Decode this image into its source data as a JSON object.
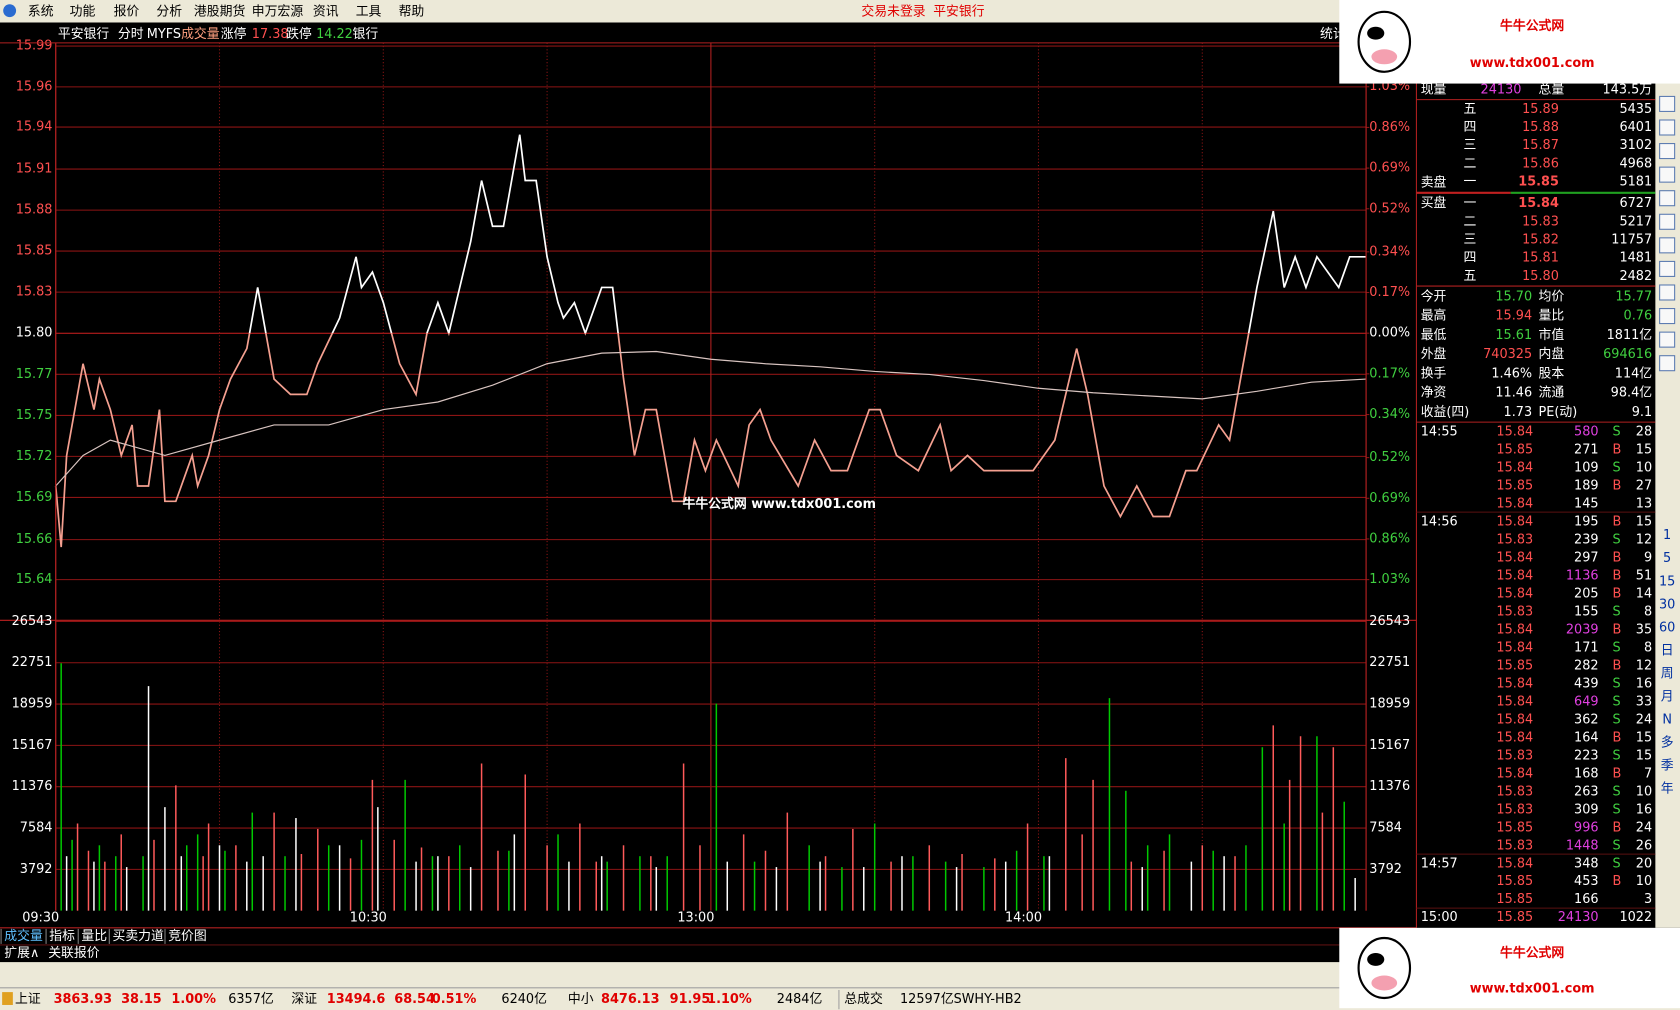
{
  "menu": {
    "items": [
      "系统",
      "功能",
      "报价",
      "分析",
      "港股期货",
      "申万宏源",
      "资讯",
      "工具",
      "帮助"
    ],
    "status": [
      "交易未登录",
      "平安银行"
    ]
  },
  "header": {
    "items": [
      "平安银行",
      "分时",
      "MYFS",
      "成交量",
      "涨停",
      "17.38",
      "跌停",
      "14.22",
      "银行"
    ],
    "right": "统计"
  },
  "logo": {
    "title": "牛牛公式网",
    "url": "www.tdx001.com"
  },
  "watermark": "牛牛公式网 www.tdx001.com",
  "chart_data": [
    {
      "type": "line",
      "xlim": [
        0,
        240
      ],
      "xticks": [
        {
          "value": 0,
          "label": "09:30"
        },
        {
          "value": 30,
          "label": null
        },
        {
          "value": 60,
          "label": "10:30"
        },
        {
          "value": 90,
          "label": null
        },
        {
          "value": 120,
          "label": "13:00"
        },
        {
          "value": 150,
          "label": null
        },
        {
          "value": 180,
          "label": "14:00"
        },
        {
          "value": 210,
          "label": null
        },
        {
          "value": 240,
          "label": null
        }
      ],
      "ylim": [
        15.6387,
        15.988
      ],
      "yticks": [
        {
          "value": 15.988,
          "label": "15.99"
        },
        {
          "value": 15.9613,
          "label": "15.96"
        },
        {
          "value": 15.935,
          "label": "15.94"
        },
        {
          "value": 15.9075,
          "label": "15.91"
        },
        {
          "value": 15.8806,
          "label": "15.88"
        },
        {
          "value": 15.8538,
          "label": "15.85"
        },
        {
          "value": 15.8269,
          "label": "15.83"
        },
        {
          "value": 15.8,
          "label": "15.80"
        },
        {
          "value": 15.7731,
          "label": "15.77"
        },
        {
          "value": 15.7462,
          "label": "15.75"
        },
        {
          "value": 15.7194,
          "label": "15.72"
        },
        {
          "value": 15.6925,
          "label": "15.69"
        },
        {
          "value": 15.6649,
          "label": "15.66"
        },
        {
          "value": 15.6387,
          "label": "15.64"
        }
      ],
      "y2lim": [
        -1.03,
        1.2
      ],
      "y2ticks": [
        {
          "value": 1.03,
          "label": "1.03%"
        },
        {
          "value": 0.86,
          "label": "0.86%"
        },
        {
          "value": 0.69,
          "label": "0.69%"
        },
        {
          "value": 0.52,
          "label": "0.52%"
        },
        {
          "value": 0.34,
          "label": "0.34%"
        },
        {
          "value": 0.17,
          "label": "0.17%"
        },
        {
          "value": 0,
          "label": "0.00%"
        },
        {
          "value": -0.17,
          "label": "0.17%"
        },
        {
          "value": -0.34,
          "label": "0.34%"
        },
        {
          "value": -0.52,
          "label": "0.52%"
        },
        {
          "value": -0.69,
          "label": "0.69%"
        },
        {
          "value": -0.86,
          "label": "0.86%"
        },
        {
          "value": -1.03,
          "label": "1.03%"
        }
      ],
      "grid": true,
      "series": [
        {
          "color_above": "#ffffff",
          "color_below": "#f4a090",
          "x": [
            0,
            1,
            2,
            5,
            7,
            8,
            10,
            12,
            14,
            15,
            17,
            19,
            20,
            22,
            24,
            25,
            26,
            28,
            30,
            32,
            35,
            37,
            40,
            43,
            46,
            48,
            52,
            55,
            56,
            58,
            60,
            63,
            66,
            68,
            70,
            72,
            74,
            76,
            78,
            80,
            82,
            83,
            85,
            86,
            88,
            90,
            92,
            93,
            95,
            97,
            100,
            102,
            104,
            106,
            108,
            110,
            113,
            115,
            117,
            119,
            121,
            125,
            127,
            129,
            131,
            136,
            139,
            142,
            145,
            149,
            151,
            154,
            158,
            162,
            164,
            167,
            170,
            175,
            179,
            183,
            187,
            189,
            192,
            195,
            198,
            201,
            204,
            207,
            209,
            213,
            215,
            217,
            220,
            223,
            225,
            227,
            229,
            231,
            233,
            235,
            237,
            238,
            240
          ],
          "values": [
            15.7,
            15.66,
            15.72,
            15.78,
            15.75,
            15.77,
            15.75,
            15.72,
            15.74,
            15.7,
            15.7,
            15.75,
            15.69,
            15.69,
            15.71,
            15.72,
            15.7,
            15.72,
            15.75,
            15.77,
            15.79,
            15.83,
            15.77,
            15.76,
            15.76,
            15.78,
            15.81,
            15.85,
            15.83,
            15.84,
            15.82,
            15.78,
            15.76,
            15.8,
            15.82,
            15.8,
            15.83,
            15.86,
            15.9,
            15.87,
            15.87,
            15.89,
            15.93,
            15.9,
            15.9,
            15.85,
            15.82,
            15.81,
            15.82,
            15.8,
            15.83,
            15.83,
            15.77,
            15.72,
            15.75,
            15.75,
            15.69,
            15.69,
            15.73,
            15.71,
            15.73,
            15.7,
            15.74,
            15.75,
            15.73,
            15.7,
            15.73,
            15.71,
            15.71,
            15.75,
            15.75,
            15.72,
            15.71,
            15.74,
            15.71,
            15.72,
            15.71,
            15.71,
            15.71,
            15.73,
            15.79,
            15.76,
            15.7,
            15.68,
            15.7,
            15.68,
            15.68,
            15.71,
            15.71,
            15.74,
            15.73,
            15.77,
            15.83,
            15.88,
            15.83,
            15.85,
            15.83,
            15.85,
            15.84,
            15.83,
            15.85,
            15.85,
            15.85
          ]
        },
        {
          "color": "#d8c4c0",
          "x": [
            0,
            5,
            10,
            20,
            30,
            40,
            50,
            60,
            70,
            80,
            90,
            100,
            110,
            120,
            130,
            140,
            150,
            160,
            170,
            180,
            190,
            200,
            210,
            220,
            230,
            240
          ],
          "values": [
            15.7,
            15.72,
            15.73,
            15.72,
            15.73,
            15.74,
            15.74,
            15.75,
            15.755,
            15.766,
            15.78,
            15.787,
            15.788,
            15.783,
            15.78,
            15.778,
            15.775,
            15.773,
            15.769,
            15.764,
            15.761,
            15.759,
            15.757,
            15.762,
            15.768,
            15.77
          ]
        }
      ]
    },
    {
      "type": "bar",
      "xlim": [
        0,
        240
      ],
      "ylim": [
        0,
        26543
      ],
      "yticks": [
        3792,
        7584,
        11376,
        15167,
        18959,
        22751,
        26543
      ],
      "grid": true,
      "series": [
        {
          "color": "#ff5a5a",
          "x": [
            4,
            6,
            9,
            12,
            18,
            22,
            27,
            28,
            33,
            40,
            45,
            48,
            54,
            58,
            62,
            67,
            72,
            78,
            81,
            86,
            90,
            96,
            99,
            104,
            109,
            115,
            118,
            126,
            130,
            134,
            141,
            146,
            153,
            160,
            166,
            172,
            178,
            185,
            188,
            190,
            197,
            203,
            210,
            216,
            223,
            226,
            228,
            232,
            234
          ],
          "values": [
            8000,
            5500,
            4500,
            7000,
            6500,
            11500,
            5000,
            8000,
            6000,
            9000,
            5200,
            7500,
            4800,
            12000,
            6500,
            5800,
            5000,
            13500,
            5500,
            12500,
            6000,
            8000,
            4500,
            6000,
            5000,
            13500,
            6000,
            7000,
            5500,
            9000,
            5000,
            7500,
            4500,
            6000,
            5200,
            4800,
            8000,
            14000,
            7000,
            12000,
            4500,
            5500,
            6000,
            5000,
            17000,
            12000,
            16000,
            9000,
            15000
          ]
        },
        {
          "color": "#00c800",
          "x": [
            1,
            3,
            8,
            11,
            16,
            24,
            26,
            31,
            36,
            42,
            50,
            56,
            64,
            69,
            74,
            83,
            92,
            101,
            107,
            112,
            121,
            128,
            138,
            144,
            150,
            157,
            163,
            170,
            176,
            181,
            193,
            196,
            200,
            204,
            212,
            218,
            221,
            225,
            231,
            236
          ],
          "values": [
            22700,
            6500,
            6000,
            5000,
            5000,
            6000,
            7000,
            5500,
            9000,
            5000,
            6000,
            6500,
            12000,
            5000,
            6000,
            5500,
            7000,
            4500,
            5000,
            5000,
            19000,
            4500,
            6000,
            4000,
            8000,
            5000,
            4500,
            4000,
            5500,
            5000,
            19500,
            11000,
            6000,
            7000,
            5500,
            6000,
            15000,
            8000,
            16000,
            10000
          ]
        },
        {
          "color": "#ffffff",
          "x": [
            2,
            7,
            13,
            17,
            20,
            23,
            30,
            35,
            38,
            44,
            52,
            59,
            66,
            70,
            76,
            84,
            94,
            100,
            110,
            123,
            132,
            140,
            148,
            155,
            165,
            174,
            182,
            199,
            208,
            214,
            238
          ],
          "values": [
            5000,
            4500,
            4000,
            20600,
            9500,
            5000,
            6000,
            4500,
            5000,
            8500,
            6000,
            9500,
            4500,
            5000,
            4000,
            7000,
            4500,
            5000,
            4000,
            4500,
            4000,
            4500,
            4000,
            5000,
            4000,
            4500,
            5000,
            4000,
            4500,
            5000,
            3000
          ]
        }
      ]
    }
  ],
  "quote": {
    "top": [
      "现量",
      "24130",
      "总量",
      "143.5万"
    ],
    "sell_label": "卖盘",
    "buy_label": "买盘",
    "asks": [
      [
        "五",
        "15.89",
        "5435"
      ],
      [
        "四",
        "15.88",
        "6401"
      ],
      [
        "三",
        "15.87",
        "3102"
      ],
      [
        "二",
        "15.86",
        "4968"
      ],
      [
        "一",
        "15.85",
        "5181"
      ]
    ],
    "bids": [
      [
        "一",
        "15.84",
        "6727"
      ],
      [
        "二",
        "15.83",
        "5217"
      ],
      [
        "三",
        "15.82",
        "11757"
      ],
      [
        "四",
        "15.81",
        "1481"
      ],
      [
        "五",
        "15.80",
        "2482"
      ]
    ],
    "stats": [
      [
        "今开",
        "15.70",
        "均价",
        "15.77"
      ],
      [
        "最高",
        "15.94",
        "量比",
        "0.76"
      ],
      [
        "最低",
        "15.61",
        "市值",
        "1811亿"
      ],
      [
        "外盘",
        "740325",
        "内盘",
        "694616"
      ],
      [
        "换手",
        "1.46%",
        "股本",
        "114亿"
      ],
      [
        "净资",
        "11.46",
        "流通",
        "98.4亿"
      ],
      [
        "收益(四)",
        "1.73",
        "PE(动)",
        "9.1"
      ]
    ],
    "trades": [
      [
        "14:55",
        "15.84",
        "580",
        "S",
        "28"
      ],
      [
        null,
        "15.85",
        "271",
        "B",
        "15"
      ],
      [
        null,
        "15.84",
        "109",
        "S",
        "10"
      ],
      [
        null,
        "15.85",
        "189",
        "B",
        "27"
      ],
      [
        null,
        "15.84",
        "145",
        null,
        "13"
      ],
      [
        "14:56",
        "15.84",
        "195",
        "B",
        "15"
      ],
      [
        null,
        "15.83",
        "239",
        "S",
        "12"
      ],
      [
        null,
        "15.84",
        "297",
        "B",
        "9"
      ],
      [
        null,
        "15.84",
        "1136",
        "B",
        "51"
      ],
      [
        null,
        "15.84",
        "205",
        "B",
        "14"
      ],
      [
        null,
        "15.83",
        "155",
        "S",
        "8"
      ],
      [
        null,
        "15.84",
        "2039",
        "B",
        "35"
      ],
      [
        null,
        "15.84",
        "171",
        "S",
        "8"
      ],
      [
        null,
        "15.85",
        "282",
        "B",
        "12"
      ],
      [
        null,
        "15.84",
        "439",
        "S",
        "16"
      ],
      [
        null,
        "15.84",
        "649",
        "S",
        "33"
      ],
      [
        null,
        "15.84",
        "362",
        "S",
        "24"
      ],
      [
        null,
        "15.84",
        "164",
        "B",
        "15"
      ],
      [
        null,
        "15.83",
        "223",
        "S",
        "15"
      ],
      [
        null,
        "15.84",
        "168",
        "B",
        "7"
      ],
      [
        null,
        "15.83",
        "263",
        "S",
        "10"
      ],
      [
        null,
        "15.83",
        "309",
        "S",
        "16"
      ],
      [
        null,
        "15.85",
        "996",
        "B",
        "24"
      ],
      [
        null,
        "15.83",
        "1448",
        "S",
        "26"
      ],
      [
        "14:57",
        "15.84",
        "348",
        "S",
        "20"
      ],
      [
        null,
        "15.85",
        "453",
        "B",
        "10"
      ],
      [
        null,
        "15.85",
        "166",
        null,
        "3"
      ],
      [
        "15:00",
        "15.85",
        "24130",
        null,
        "1022"
      ]
    ]
  },
  "toolbar": [
    "1",
    "5",
    "15",
    "30",
    "60",
    "日",
    "周",
    "月",
    "N",
    "多",
    "季",
    "年"
  ],
  "tabs": {
    "row1": [
      "成交量",
      "指标",
      "量比",
      "买卖力道",
      "竞价图"
    ],
    "row2": [
      "扩展∧",
      "关联报价"
    ]
  },
  "status": {
    "indices": [
      [
        "上证",
        "3863.93",
        "38.15",
        "1.00%",
        "6357亿"
      ],
      [
        "深证",
        "13494.6",
        "68.54",
        "0.51%",
        "6240亿"
      ],
      [
        "中小",
        "8476.13",
        "91.95",
        "1.10%",
        "2484亿"
      ]
    ],
    "total_label": "总成交",
    "total": "12597亿",
    "server": "SWHY-HB2"
  }
}
